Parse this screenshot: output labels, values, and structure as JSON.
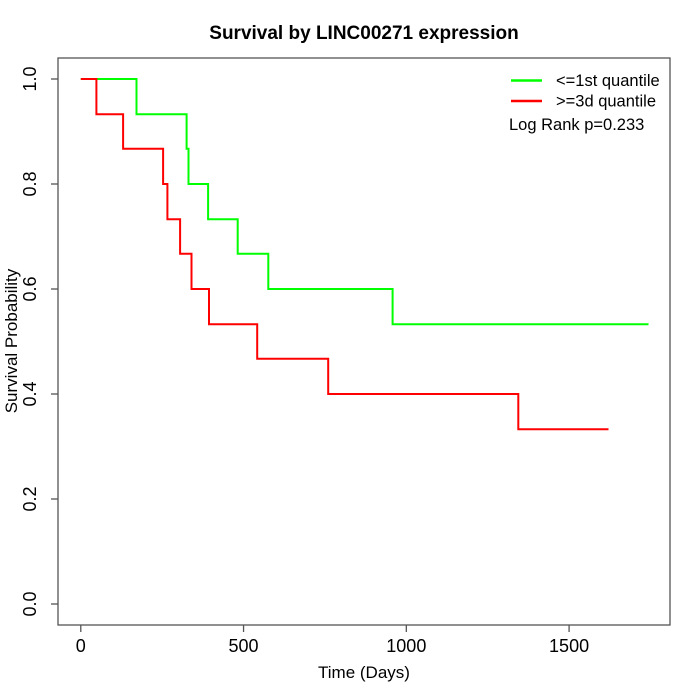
{
  "chart_data": {
    "type": "line",
    "subtype": "kaplan-meier-step",
    "title": "Survival by LINC00271 expression",
    "xlabel": "Time (Days)",
    "ylabel": "Survival Probability",
    "xlim": [
      -70,
      1810
    ],
    "ylim": [
      -0.04,
      1.04
    ],
    "xticks": [
      0,
      500,
      1000,
      1500
    ],
    "xtick_labels": [
      "0",
      "500",
      "1000",
      "1500"
    ],
    "yticks": [
      0.0,
      0.2,
      0.4,
      0.6,
      0.8,
      1.0
    ],
    "ytick_labels": [
      "0.0",
      "0.2",
      "0.4",
      "0.6",
      "0.8",
      "1.0"
    ],
    "grid": false,
    "legend_position": "top-right",
    "annotation": "Log Rank p=0.233",
    "series": [
      {
        "name": "<=1st quantile",
        "color": "#00ff00",
        "start": [
          0,
          1.0
        ],
        "drops": [
          [
            171,
            0.933
          ],
          [
            325,
            0.867
          ],
          [
            331,
            0.8
          ],
          [
            391,
            0.733
          ],
          [
            482,
            0.667
          ],
          [
            576,
            0.6
          ],
          [
            958,
            0.533
          ]
        ],
        "end_time": 1744
      },
      {
        "name": ">=3d quantile",
        "color": "#ff0000",
        "start": [
          0,
          1.0
        ],
        "drops": [
          [
            48,
            0.933
          ],
          [
            130,
            0.867
          ],
          [
            253,
            0.8
          ],
          [
            266,
            0.733
          ],
          [
            305,
            0.667
          ],
          [
            340,
            0.6
          ],
          [
            394,
            0.533
          ],
          [
            542,
            0.467
          ],
          [
            760,
            0.4
          ],
          [
            1344,
            0.333
          ]
        ],
        "end_time": 1621
      }
    ]
  }
}
